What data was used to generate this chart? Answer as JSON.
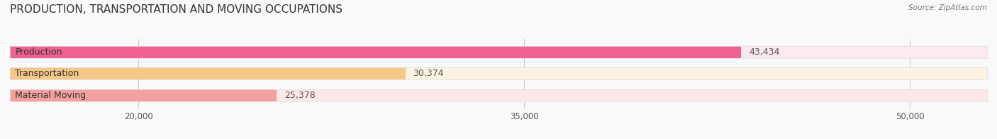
{
  "title": "PRODUCTION, TRANSPORTATION AND MOVING OCCUPATIONS",
  "source": "Source: ZipAtlas.com",
  "categories": [
    "Production",
    "Transportation",
    "Material Moving"
  ],
  "values": [
    43434,
    30374,
    25378
  ],
  "bar_colors": [
    "#f06090",
    "#f5c887",
    "#f5a0a0"
  ],
  "bar_bg_colors": [
    "#fce8ef",
    "#fdf3e3",
    "#fce8e8"
  ],
  "xlim": [
    15000,
    53000
  ],
  "xticks": [
    20000,
    35000,
    50000
  ],
  "xtick_labels": [
    "20,000",
    "35,000",
    "50,000"
  ],
  "title_fontsize": 11,
  "label_fontsize": 9,
  "value_fontsize": 9,
  "background_color": "#f9f9f9"
}
